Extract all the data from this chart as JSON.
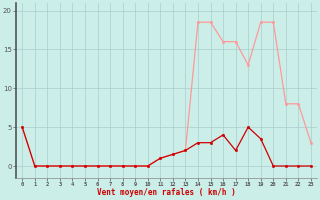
{
  "x": [
    0,
    1,
    2,
    3,
    4,
    5,
    6,
    7,
    8,
    9,
    10,
    11,
    12,
    13,
    14,
    15,
    16,
    17,
    18,
    19,
    20,
    21,
    22,
    23
  ],
  "y_mean": [
    5,
    0,
    0,
    0,
    0,
    0,
    0,
    0,
    0,
    0,
    0,
    1,
    1.5,
    2,
    3,
    3,
    4,
    2,
    5,
    3.5,
    0,
    0,
    0,
    0
  ],
  "y_gust": [
    5,
    0,
    0,
    0,
    0,
    0,
    0,
    0,
    0,
    0,
    0,
    1,
    1.5,
    2,
    18.5,
    18.5,
    16,
    16,
    13,
    18.5,
    18.5,
    8,
    8,
    3
  ],
  "mean_color": "#cc0000",
  "gust_color": "#ff9999",
  "bg_color": "#cceee8",
  "grid_color": "#aacccc",
  "xlabel": "Vent moyen/en rafales ( km/h )",
  "yticks": [
    0,
    5,
    10,
    15,
    20
  ],
  "xlim": [
    -0.5,
    23.5
  ],
  "ylim": [
    -1.5,
    21
  ],
  "figsize": [
    3.2,
    2.0
  ],
  "dpi": 100
}
